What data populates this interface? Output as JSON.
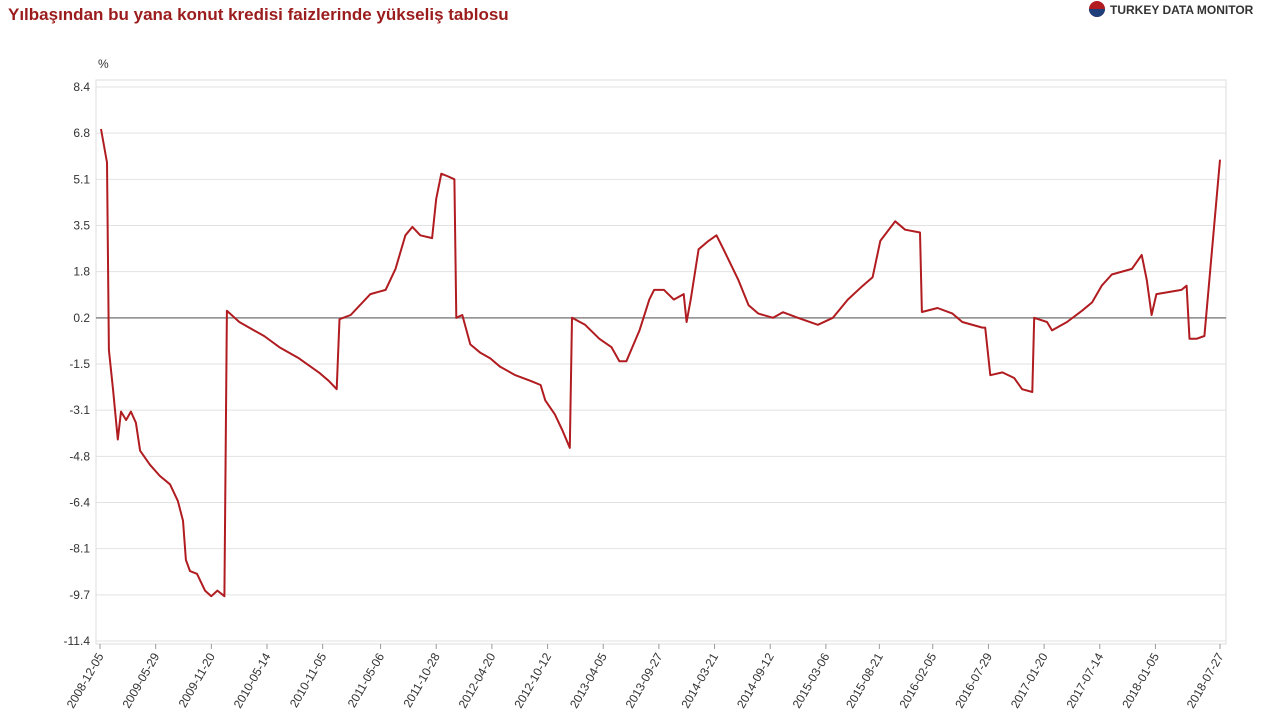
{
  "brand": "TURKEY DATA MONITOR",
  "chart_data": {
    "type": "line",
    "title": "Yılbaşından bu yana konut kredisi faizlerinde yükseliş tablosu",
    "y_label": "%",
    "grid": true,
    "xlim": [
      "2008-12-05",
      "2018-07-27"
    ],
    "xticks": [
      "2008-12-05",
      "2009-05-29",
      "2009-11-20",
      "2010-05-14",
      "2010-11-05",
      "2011-05-06",
      "2011-10-28",
      "2012-04-20",
      "2012-10-12",
      "2013-04-05",
      "2013-09-27",
      "2014-03-21",
      "2014-09-12",
      "2015-03-06",
      "2015-08-21",
      "2016-02-05",
      "2016-07-29",
      "2017-01-20",
      "2017-07-14",
      "2018-01-05",
      "2018-07-27"
    ],
    "ylim": [
      -11.4,
      8.4
    ],
    "yticks": [
      8.4,
      {
        "value": 6.75,
        "label": "6.8"
      },
      5.1,
      {
        "value": 3.45,
        "label": "3.5"
      },
      1.8,
      {
        "value": 0.15,
        "label": "0.2"
      },
      -1.5,
      {
        "value": -3.15,
        "label": "-3.1"
      },
      -4.8,
      {
        "value": -6.45,
        "label": "-6.4"
      },
      -8.1,
      {
        "value": -9.75,
        "label": "-9.7"
      },
      -11.4
    ],
    "x": [
      "2008-12-08",
      "2008-12-27",
      "2009-01-02",
      "2009-01-15",
      "2009-01-30",
      "2009-02-09",
      "2009-02-25",
      "2009-03-12",
      "2009-03-28",
      "2009-04-10",
      "2009-05-11",
      "2009-06-11",
      "2009-07-13",
      "2009-08-07",
      "2009-08-23",
      "2009-09-01",
      "2009-09-14",
      "2009-10-06",
      "2009-10-31",
      "2009-11-20",
      "2009-12-09",
      "2009-12-31",
      "2010-01-08",
      "2010-02-16",
      "2010-04-03",
      "2010-05-05",
      "2010-06-22",
      "2010-08-23",
      "2010-10-24",
      "2010-11-24",
      "2010-12-19",
      "2010-12-28",
      "2011-02-01",
      "2011-04-04",
      "2011-05-22",
      "2011-06-22",
      "2011-07-23",
      "2011-08-14",
      "2011-09-08",
      "2011-10-15",
      "2011-10-28",
      "2011-11-13",
      "2011-12-05",
      "2011-12-24",
      "2011-12-30",
      "2012-01-18",
      "2012-02-12",
      "2012-03-15",
      "2012-04-15",
      "2012-05-16",
      "2012-07-03",
      "2012-08-19",
      "2012-09-20",
      "2012-10-05",
      "2012-11-04",
      "2012-11-29",
      "2012-12-21",
      "2012-12-28",
      "2013-02-07",
      "2013-03-24",
      "2013-05-01",
      "2013-05-26",
      "2013-06-17",
      "2013-07-28",
      "2013-08-28",
      "2013-09-12",
      "2013-10-13",
      "2013-11-13",
      "2013-12-14",
      "2013-12-23",
      "2014-01-05",
      "2014-01-30",
      "2014-03-02",
      "2014-03-27",
      "2014-04-18",
      "2014-06-04",
      "2014-07-06",
      "2014-08-06",
      "2014-09-21",
      "2014-10-22",
      "2014-12-08",
      "2015-02-09",
      "2015-03-28",
      "2015-05-14",
      "2015-06-30",
      "2015-07-31",
      "2015-08-24",
      "2015-10-10",
      "2015-11-10",
      "2015-12-27",
      "2016-01-02",
      "2016-02-20",
      "2016-04-07",
      "2016-05-08",
      "2016-07-10",
      "2016-07-19",
      "2016-08-04",
      "2016-09-11",
      "2016-10-18",
      "2016-11-12",
      "2016-12-14",
      "2016-12-20",
      "2017-01-29",
      "2017-02-14",
      "2017-04-02",
      "2017-05-19",
      "2017-06-20",
      "2017-07-20",
      "2017-08-21",
      "2017-10-23",
      "2017-11-23",
      "2017-12-09",
      "2017-12-24",
      "2018-01-08",
      "2018-03-28",
      "2018-04-13",
      "2018-04-22",
      "2018-05-14",
      "2018-06-08",
      "2018-07-27"
    ],
    "series": [
      {
        "color": "#b01c20",
        "values": [
          6.9,
          5.7,
          -1.0,
          -2.4,
          -4.2,
          -3.2,
          -3.5,
          -3.2,
          -3.6,
          -4.6,
          -5.1,
          -5.5,
          -5.8,
          -6.4,
          -7.1,
          -8.5,
          -8.9,
          -9.0,
          -9.6,
          -9.8,
          -9.6,
          -9.8,
          0.4,
          0.0,
          -0.3,
          -0.5,
          -0.9,
          -1.3,
          -1.8,
          -2.1,
          -2.4,
          0.1,
          0.25,
          1.0,
          1.15,
          1.9,
          3.1,
          3.4,
          3.1,
          3.0,
          4.4,
          5.3,
          5.2,
          5.1,
          0.15,
          0.25,
          -0.8,
          -1.1,
          -1.3,
          -1.6,
          -1.9,
          -2.1,
          -2.25,
          -2.8,
          -3.3,
          -3.9,
          -4.5,
          0.15,
          -0.1,
          -0.6,
          -0.9,
          -1.4,
          -1.4,
          -0.3,
          0.8,
          1.15,
          1.15,
          0.8,
          1.0,
          0.0,
          0.8,
          2.6,
          2.9,
          3.1,
          2.6,
          1.5,
          0.6,
          0.3,
          0.15,
          0.35,
          0.15,
          -0.1,
          0.15,
          0.8,
          1.3,
          1.6,
          2.9,
          3.6,
          3.3,
          3.2,
          0.36,
          0.5,
          0.3,
          0.0,
          -0.2,
          -0.2,
          -1.9,
          -1.8,
          -2.0,
          -2.4,
          -2.5,
          0.15,
          0.0,
          -0.3,
          0.0,
          0.4,
          0.7,
          1.3,
          1.7,
          1.9,
          2.4,
          1.5,
          0.25,
          1.0,
          1.15,
          1.3,
          -0.6,
          -0.6,
          -0.5,
          5.8
        ]
      }
    ]
  }
}
